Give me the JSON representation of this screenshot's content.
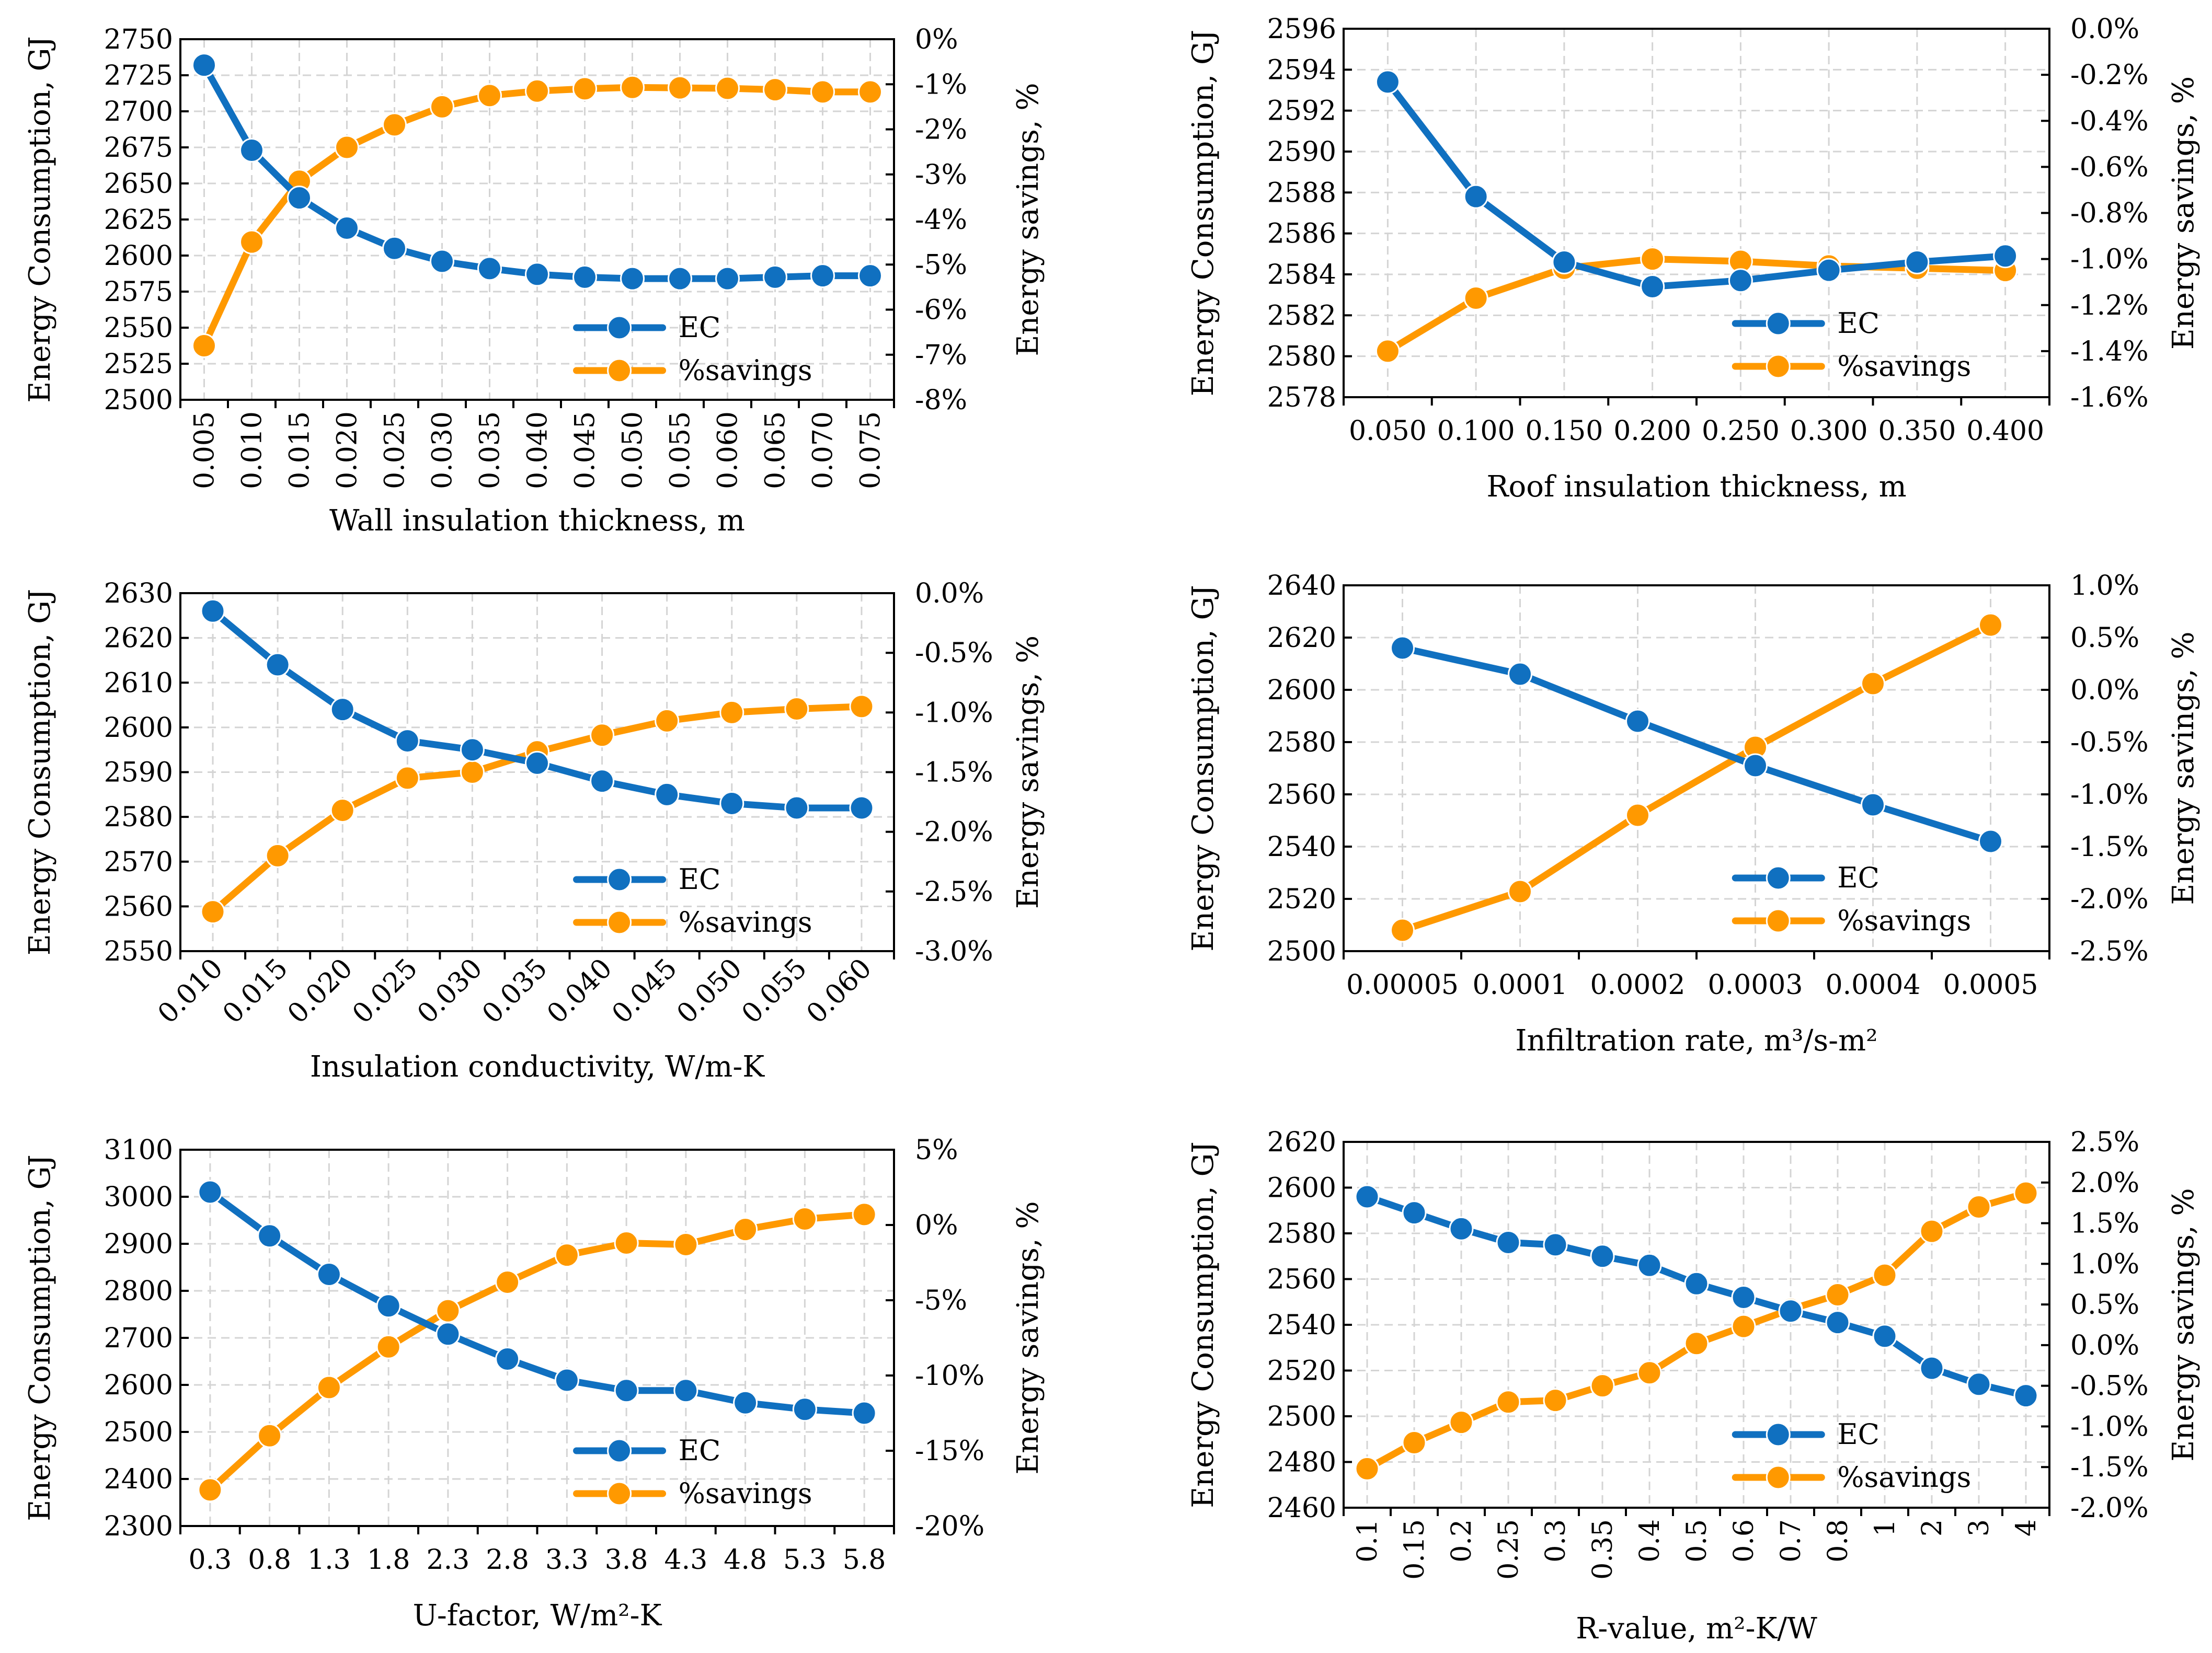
{
  "colors": {
    "ec": "#1070C0",
    "savings": "#FF9900",
    "grid": "#d4d4d4",
    "axis": "#000000"
  },
  "chart_data": [
    {
      "type": "line",
      "xlabel": "Wall insulation thickness, m",
      "ylabel": "Energy Consumption, GJ",
      "y2label": "Energy savings, %",
      "categories": [
        "0.005",
        "0.010",
        "0.015",
        "0.020",
        "0.025",
        "0.030",
        "0.035",
        "0.040",
        "0.045",
        "0.050",
        "0.055",
        "0.060",
        "0.065",
        "0.070",
        "0.075"
      ],
      "x_rotation": "vertical",
      "ylim": [
        2500,
        2750
      ],
      "yticks": [
        2500,
        2525,
        2550,
        2575,
        2600,
        2625,
        2650,
        2675,
        2700,
        2725,
        2750
      ],
      "y2lim": [
        -8,
        0
      ],
      "y2ticks": [
        -8,
        -7,
        -6,
        -5,
        -4,
        -3,
        -2,
        -1,
        0
      ],
      "y2tick_labels": [
        "-8%",
        "-7%",
        "-6%",
        "-5%",
        "-4%",
        "-3%",
        "-2%",
        "-1%",
        "0%"
      ],
      "series": [
        {
          "name": "EC",
          "axis": "left",
          "values": [
            2732,
            2673,
            2640,
            2619,
            2605,
            2596,
            2591,
            2587,
            2585,
            2584,
            2584,
            2584,
            2585,
            2586,
            2586
          ]
        },
        {
          "name": "%savings",
          "axis": "right",
          "values": [
            -6.8,
            -4.5,
            -3.15,
            -2.4,
            -1.9,
            -1.5,
            -1.25,
            -1.15,
            -1.1,
            -1.07,
            -1.08,
            -1.09,
            -1.12,
            -1.17,
            -1.17
          ]
        }
      ],
      "legend": "bottom-right",
      "grid": true
    },
    {
      "type": "line",
      "xlabel": "Roof insulation thickness, m",
      "ylabel": "Energy Consumption, GJ",
      "y2label": "Energy savings, %",
      "categories": [
        "0.050",
        "0.100",
        "0.150",
        "0.200",
        "0.250",
        "0.300",
        "0.350",
        "0.400"
      ],
      "x_rotation": "horizontal",
      "ylim": [
        2578,
        2596
      ],
      "yticks": [
        2578,
        2580,
        2582,
        2584,
        2586,
        2588,
        2590,
        2592,
        2594,
        2596
      ],
      "y2lim": [
        -1.6,
        0
      ],
      "y2ticks": [
        -1.6,
        -1.4,
        -1.2,
        -1.0,
        -0.8,
        -0.6,
        -0.4,
        -0.2,
        0
      ],
      "y2tick_labels": [
        "-1.6%",
        "-1.4%",
        "-1.2%",
        "-1.0%",
        "-0.8%",
        "-0.6%",
        "-0.4%",
        "-0.2%",
        "0.0%"
      ],
      "series": [
        {
          "name": "EC",
          "axis": "left",
          "values": [
            2593.4,
            2587.8,
            2584.6,
            2583.4,
            2583.7,
            2584.2,
            2584.6,
            2584.9
          ]
        },
        {
          "name": "%savings",
          "axis": "right",
          "values": [
            -1.4,
            -1.17,
            -1.04,
            -1.0,
            -1.01,
            -1.03,
            -1.04,
            -1.05
          ]
        }
      ],
      "legend": "bottom-right",
      "grid": true
    },
    {
      "type": "line",
      "xlabel": "Insulation conductivity, W/m-K",
      "ylabel": "Energy Consumption, GJ",
      "y2label": "Energy savings, %",
      "categories": [
        "0.010",
        "0.015",
        "0.020",
        "0.025",
        "0.030",
        "0.035",
        "0.040",
        "0.045",
        "0.050",
        "0.055",
        "0.060"
      ],
      "x_rotation": "diagonal",
      "ylim": [
        2550,
        2630
      ],
      "yticks": [
        2550,
        2560,
        2570,
        2580,
        2590,
        2600,
        2610,
        2620,
        2630
      ],
      "y2lim": [
        -3,
        0
      ],
      "y2ticks": [
        -3,
        -2.5,
        -2,
        -1.5,
        -1,
        -0.5,
        0
      ],
      "y2tick_labels": [
        "-3.0%",
        "-2.5%",
        "-2.0%",
        "-1.5%",
        "-1.0%",
        "-0.5%",
        "0.0%"
      ],
      "series": [
        {
          "name": "EC",
          "axis": "left",
          "values": [
            2626,
            2614,
            2604,
            2597,
            2595,
            2592,
            2588,
            2585,
            2583,
            2582,
            2582
          ]
        },
        {
          "name": "%savings",
          "axis": "right",
          "values": [
            -2.67,
            -2.2,
            -1.82,
            -1.55,
            -1.5,
            -1.33,
            -1.19,
            -1.07,
            -1.0,
            -0.97,
            -0.95
          ]
        }
      ],
      "legend": "bottom-right",
      "grid": true
    },
    {
      "type": "line",
      "xlabel": "Infiltration rate, m³/s-m²",
      "ylabel": "Energy Consumption, GJ",
      "y2label": "Energy savings, %",
      "categories": [
        "0.00005",
        "0.0001",
        "0.0002",
        "0.0003",
        "0.0004",
        "0.0005"
      ],
      "x_rotation": "horizontal",
      "ylim": [
        2500,
        2640
      ],
      "yticks": [
        2500,
        2520,
        2540,
        2560,
        2580,
        2600,
        2620,
        2640
      ],
      "y2lim": [
        -2.5,
        1
      ],
      "y2ticks": [
        -2.5,
        -2,
        -1.5,
        -1,
        -0.5,
        0,
        0.5,
        1
      ],
      "y2tick_labels": [
        "-2.5%",
        "-2.0%",
        "-1.5%",
        "-1.0%",
        "-0.5%",
        "0.0%",
        "0.5%",
        "1.0%"
      ],
      "series": [
        {
          "name": "EC",
          "axis": "left",
          "values": [
            2616,
            2606,
            2588,
            2571,
            2556,
            2542
          ]
        },
        {
          "name": "%savings",
          "axis": "right",
          "values": [
            -2.3,
            -1.93,
            -1.2,
            -0.55,
            0.06,
            0.62
          ]
        }
      ],
      "legend": "bottom-right",
      "grid": true
    },
    {
      "type": "line",
      "xlabel": "U-factor, W/m²-K",
      "ylabel": "Energy Consumption, GJ",
      "y2label": "Energy savings, %",
      "categories": [
        "0.3",
        "0.8",
        "1.3",
        "1.8",
        "2.3",
        "2.8",
        "3.3",
        "3.8",
        "4.3",
        "4.8",
        "5.3",
        "5.8"
      ],
      "x_rotation": "horizontal",
      "ylim": [
        2300,
        3100
      ],
      "yticks": [
        2300,
        2400,
        2500,
        2600,
        2700,
        2800,
        2900,
        3000,
        3100
      ],
      "y2lim": [
        -20,
        5
      ],
      "y2ticks": [
        -20,
        -15,
        -10,
        -5,
        0,
        5
      ],
      "y2tick_labels": [
        "-20%",
        "-15%",
        "-10%",
        "-5%",
        "0%",
        "5%"
      ],
      "series": [
        {
          "name": "EC",
          "axis": "left",
          "values": [
            3010,
            2917,
            2835,
            2768,
            2708,
            2655,
            2610,
            2588,
            2588,
            2562,
            2548,
            2540
          ]
        },
        {
          "name": "%savings",
          "axis": "right",
          "values": [
            -17.6,
            -14.0,
            -10.8,
            -8.1,
            -5.7,
            -3.8,
            -2.0,
            -1.2,
            -1.3,
            -0.3,
            0.4,
            0.7
          ]
        }
      ],
      "legend": "bottom-right",
      "grid": true
    },
    {
      "type": "line",
      "xlabel": "R-value, m²-K/W",
      "ylabel": "Energy Consumption, GJ",
      "y2label": "Energy savings, %",
      "categories": [
        "0.1",
        "0.15",
        "0.2",
        "0.25",
        "0.3",
        "0.35",
        "0.4",
        "0.5",
        "0.6",
        "0.7",
        "0.8",
        "1",
        "2",
        "3",
        "4"
      ],
      "x_rotation": "vertical",
      "ylim": [
        2460,
        2620
      ],
      "yticks": [
        2460,
        2480,
        2500,
        2520,
        2540,
        2560,
        2580,
        2600,
        2620
      ],
      "y2lim": [
        -2,
        2.5
      ],
      "y2ticks": [
        -2,
        -1.5,
        -1,
        -0.5,
        0,
        0.5,
        1,
        1.5,
        2,
        2.5
      ],
      "y2tick_labels": [
        "-2.0%",
        "-1.5%",
        "-1.0%",
        "-0.5%",
        "0.0%",
        "0.5%",
        "1.0%",
        "1.5%",
        "2.0%",
        "2.5%"
      ],
      "series": [
        {
          "name": "EC",
          "axis": "left",
          "values": [
            2596,
            2589,
            2582,
            2576,
            2575,
            2570,
            2566,
            2558,
            2552,
            2546,
            2541,
            2535,
            2521,
            2514,
            2509
          ]
        },
        {
          "name": "%savings",
          "axis": "right",
          "values": [
            -1.52,
            -1.2,
            -0.95,
            -0.7,
            -0.68,
            -0.5,
            -0.34,
            0.02,
            0.23,
            0.44,
            0.62,
            0.86,
            1.4,
            1.7,
            1.87
          ]
        }
      ],
      "legend": "bottom-right",
      "grid": true
    }
  ]
}
